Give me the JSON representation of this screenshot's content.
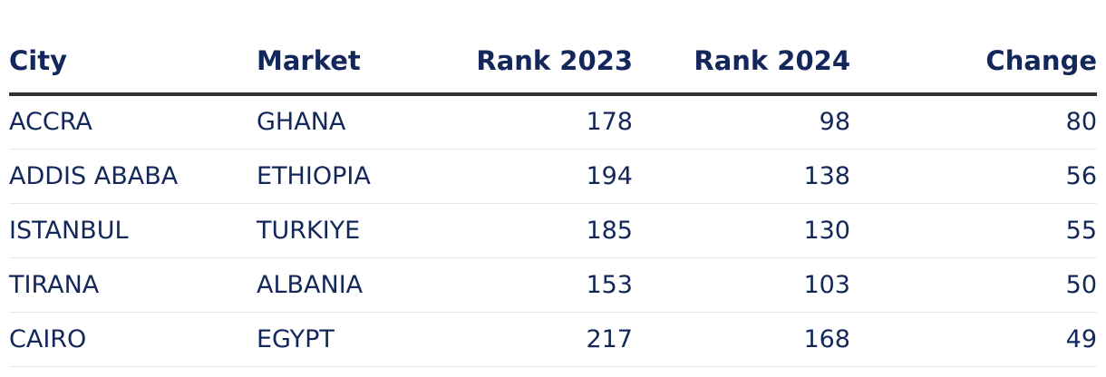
{
  "chart_data": {
    "type": "table",
    "columns": [
      "City",
      "Market",
      "Rank 2023",
      "Rank 2024",
      "Change"
    ],
    "rows": [
      {
        "city": "ACCRA",
        "market": "GHANA",
        "rank_2023": "178",
        "rank_2024": "98",
        "change": "80"
      },
      {
        "city": "ADDIS ABABA",
        "market": "ETHIOPIA",
        "rank_2023": "194",
        "rank_2024": "138",
        "change": "56"
      },
      {
        "city": "ISTANBUL",
        "market": "TURKIYE",
        "rank_2023": "185",
        "rank_2024": "130",
        "change": "55"
      },
      {
        "city": "TIRANA",
        "market": "ALBANIA",
        "rank_2023": "153",
        "rank_2024": "103",
        "change": "50"
      },
      {
        "city": "CAIRO",
        "market": "EGYPT",
        "rank_2023": "217",
        "rank_2024": "168",
        "change": "49"
      }
    ]
  },
  "colors": {
    "text": "#13275a",
    "header_rule": "#333333",
    "row_rule": "#e6e6e6"
  }
}
